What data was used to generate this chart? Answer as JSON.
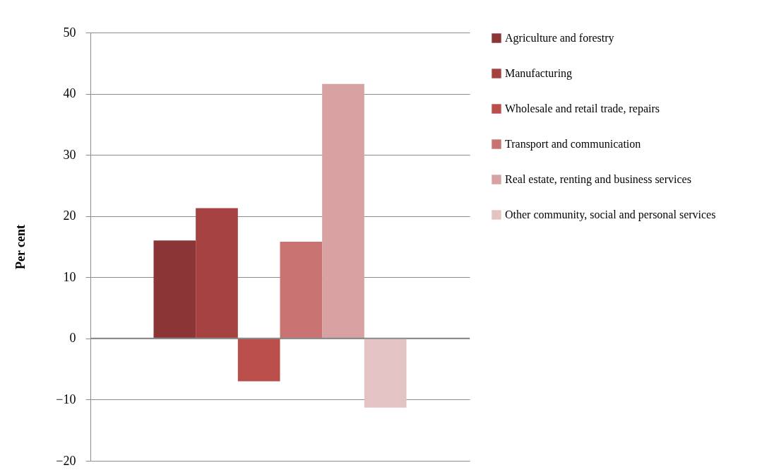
{
  "chart_data": {
    "type": "bar",
    "ylabel": "Per cent",
    "categories": [
      null
    ],
    "series": [
      {
        "name": "Agriculture and forestry",
        "color": "#8b3536",
        "values": [
          16.0
        ]
      },
      {
        "name": "Manufacturing",
        "color": "#a54241",
        "values": [
          21.3
        ]
      },
      {
        "name": "Wholesale and retail trade, repairs",
        "color": "#b94e4b",
        "values": [
          -7.0
        ]
      },
      {
        "name": "Transport and communication",
        "color": "#c87271",
        "values": [
          15.8
        ]
      },
      {
        "name": "Real estate, renting and business services",
        "color": "#d8a2a2",
        "values": [
          41.6
        ]
      },
      {
        "name": "Other community, social and personal services",
        "color": "#e4c3c4",
        "values": [
          -11.3
        ]
      }
    ],
    "ylim": [
      -20,
      50
    ],
    "yticks": [
      -20,
      -10,
      0,
      10,
      20,
      30,
      40,
      50
    ],
    "grid": "y",
    "legend": "right"
  }
}
